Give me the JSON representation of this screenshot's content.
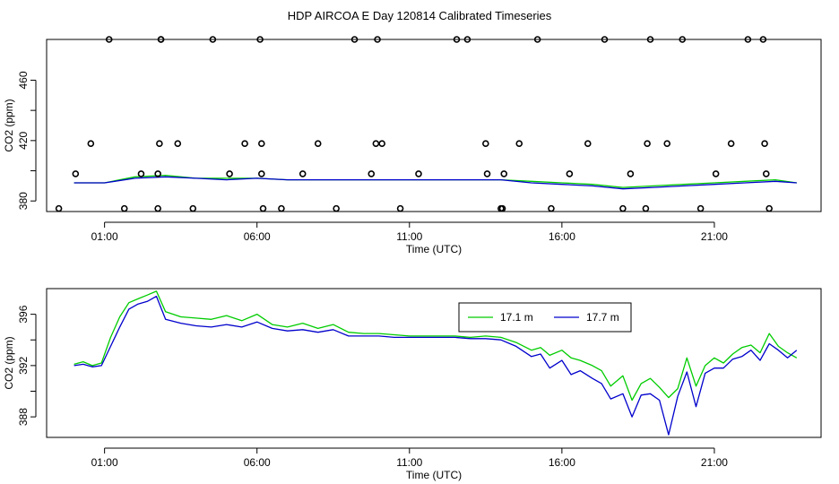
{
  "chart_data": {
    "title": "HDP AIRCOA E  Day 120814  Calibrated Timeseries",
    "panels": [
      {
        "type": "line",
        "xlabel": "Time (UTC)",
        "ylabel": "CO2 (ppm)",
        "xlim": [
          -0.9,
          24.5
        ],
        "ylim": [
          373,
          487
        ],
        "xticks": [
          1,
          6,
          11,
          16,
          21
        ],
        "xtick_labels": [
          "01:00",
          "06:00",
          "11:00",
          "16:00",
          "21:00"
        ],
        "yticks": [
          380,
          420,
          460
        ],
        "yticks_draw": [
          380,
          400,
          420,
          440,
          460
        ],
        "series": [
          {
            "color": "#00cc00",
            "x": [
              0,
              1,
              2,
              3,
              4,
              5,
              6,
              7,
              8,
              9,
              10,
              11,
              12,
              13,
              14,
              15,
              16,
              17,
              18,
              19,
              20,
              21,
              22,
              23,
              23.7
            ],
            "y": [
              392,
              392,
              396,
              397,
              395,
              395,
              395,
              394,
              394,
              394,
              394,
              394,
              394,
              394,
              394,
              393,
              392,
              391,
              389,
              390,
              391,
              392,
              393,
              394,
              392
            ]
          },
          {
            "color": "#0000cc",
            "x": [
              0,
              1,
              2,
              3,
              4,
              5,
              6,
              7,
              8,
              9,
              10,
              11,
              12,
              13,
              14,
              15,
              16,
              17,
              18,
              19,
              20,
              21,
              22,
              23,
              23.7
            ],
            "y": [
              392,
              392,
              395,
              396,
              395,
              394,
              395,
              394,
              394,
              394,
              394,
              394,
              394,
              394,
              394,
              392,
              391,
              390,
              388,
              389,
              390,
              391,
              392,
              393,
              392
            ]
          }
        ],
        "cal_points": {
          "x": [
            -0.5,
            0.05,
            0.55,
            1.15,
            1.65,
            2.2,
            2.75,
            2.75,
            2.8,
            2.85,
            2.85,
            3.4,
            3.9,
            4.55,
            5.1,
            5.6,
            6.1,
            6.15,
            6.15,
            6.2,
            6.8,
            7.5,
            8.0,
            8.6,
            9.2,
            9.75,
            9.9,
            9.95,
            10.1,
            10.7,
            11.3,
            12.55,
            12.9,
            13.5,
            13.55,
            14.0,
            14.05,
            14.1,
            14.6,
            15.2,
            15.65,
            16.25,
            16.85,
            17.4,
            18.0,
            18.25,
            18.75,
            18.8,
            18.9,
            19.45,
            19.95,
            20.55,
            21.05,
            21.55,
            22.1,
            22.6,
            22.65,
            22.7,
            22.8
          ],
          "y": [
            375,
            398,
            418,
            487,
            375,
            398,
            375,
            398,
            418,
            487,
            487,
            418,
            375,
            487,
            398,
            418,
            487,
            418,
            398,
            375,
            375,
            398,
            418,
            375,
            487,
            398,
            418,
            487,
            418,
            375,
            398,
            487,
            487,
            418,
            398,
            375,
            375,
            398,
            418,
            487,
            375,
            398,
            418,
            487,
            375,
            398,
            375,
            418,
            487,
            418,
            487,
            375,
            398,
            418,
            487,
            487,
            418,
            398,
            375
          ]
        }
      },
      {
        "type": "line",
        "xlabel": "Time (UTC)",
        "ylabel": "CO2 (ppm)",
        "xlim": [
          -0.9,
          24.5
        ],
        "ylim": [
          386.4,
          398.0
        ],
        "xticks": [
          1,
          6,
          11,
          16,
          21
        ],
        "xtick_labels": [
          "01:00",
          "06:00",
          "11:00",
          "16:00",
          "21:00"
        ],
        "yticks": [
          388,
          392,
          396
        ],
        "yticks_draw": [
          388,
          390,
          392,
          394,
          396
        ],
        "legend_position": "top-right",
        "series": [
          {
            "name": "17.1 m",
            "color": "#00cc00",
            "x": [
              0,
              0.3,
              0.6,
              0.9,
              1.2,
              1.5,
              1.8,
              2.1,
              2.4,
              2.7,
              3.0,
              3.5,
              4.0,
              4.5,
              5.0,
              5.5,
              6.0,
              6.5,
              7.0,
              7.5,
              8.0,
              8.5,
              9.0,
              9.5,
              10.0,
              10.5,
              11.0,
              11.5,
              12.0,
              12.5,
              13.0,
              13.5,
              14.0,
              14.5,
              15.0,
              15.3,
              15.6,
              16.0,
              16.3,
              16.6,
              17.0,
              17.3,
              17.6,
              18.0,
              18.3,
              18.6,
              18.9,
              19.2,
              19.5,
              19.8,
              20.1,
              20.4,
              20.7,
              21.0,
              21.3,
              21.6,
              21.9,
              22.2,
              22.5,
              22.8,
              23.1,
              23.4,
              23.7
            ],
            "y": [
              392.1,
              392.3,
              392.0,
              392.2,
              394.2,
              395.8,
              396.9,
              397.2,
              397.5,
              397.8,
              396.2,
              395.8,
              395.7,
              395.6,
              395.9,
              395.5,
              396.0,
              395.2,
              395.0,
              395.3,
              394.9,
              395.2,
              394.6,
              394.5,
              394.5,
              394.4,
              394.3,
              394.3,
              394.3,
              394.3,
              394.2,
              394.3,
              394.2,
              393.8,
              393.2,
              393.4,
              392.8,
              393.2,
              392.6,
              392.4,
              392.0,
              391.6,
              390.4,
              391.2,
              389.3,
              390.6,
              391.0,
              390.3,
              389.5,
              390.2,
              392.6,
              390.4,
              392.0,
              392.6,
              392.2,
              392.9,
              393.4,
              393.6,
              393.0,
              394.5,
              393.5,
              393.0,
              392.6
            ]
          },
          {
            "name": "17.7 m",
            "color": "#0000cc",
            "x": [
              0,
              0.3,
              0.6,
              0.9,
              1.2,
              1.5,
              1.8,
              2.1,
              2.4,
              2.7,
              3.0,
              3.5,
              4.0,
              4.5,
              5.0,
              5.5,
              6.0,
              6.5,
              7.0,
              7.5,
              8.0,
              8.5,
              9.0,
              9.5,
              10.0,
              10.5,
              11.0,
              11.5,
              12.0,
              12.5,
              13.0,
              13.5,
              14.0,
              14.5,
              15.0,
              15.3,
              15.6,
              16.0,
              16.3,
              16.6,
              17.0,
              17.3,
              17.6,
              18.0,
              18.3,
              18.6,
              18.9,
              19.2,
              19.5,
              19.8,
              20.1,
              20.4,
              20.7,
              21.0,
              21.3,
              21.6,
              21.9,
              22.2,
              22.5,
              22.8,
              23.1,
              23.4,
              23.7
            ],
            "y": [
              392.0,
              392.1,
              391.9,
              392.0,
              393.5,
              395.0,
              396.4,
              396.8,
              397.0,
              397.4,
              395.6,
              395.3,
              395.1,
              395.0,
              395.2,
              395.0,
              395.4,
              394.9,
              394.7,
              394.8,
              394.6,
              394.8,
              394.3,
              394.3,
              394.3,
              394.2,
              394.2,
              394.2,
              394.2,
              394.2,
              394.1,
              394.1,
              394.0,
              393.5,
              392.7,
              392.9,
              391.8,
              392.4,
              391.3,
              391.6,
              391.0,
              390.6,
              389.4,
              389.8,
              388.0,
              389.7,
              389.8,
              389.3,
              386.6,
              389.6,
              391.5,
              388.8,
              391.4,
              391.8,
              391.8,
              392.5,
              392.7,
              393.2,
              392.4,
              393.7,
              393.2,
              392.6,
              393.2
            ]
          }
        ]
      }
    ]
  }
}
